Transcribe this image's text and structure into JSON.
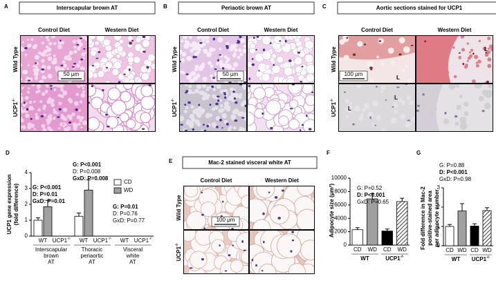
{
  "panels": {
    "A": {
      "letter": "A",
      "title": "Interscapular brown AT",
      "columns": [
        "Control Diet",
        "Western Diet"
      ],
      "rows": [
        "Wild Type",
        {
          "base": "UCP1",
          "sup": "-/-"
        }
      ],
      "scale_bar": "50 μm"
    },
    "B": {
      "letter": "B",
      "title": "Periaotic brown AT",
      "columns": [
        "Control Diet",
        "Western Diet"
      ],
      "rows": [
        "Wild Type",
        {
          "base": "UCP1",
          "sup": "-/-"
        }
      ],
      "scale_bar": "50 μm"
    },
    "C": {
      "letter": "C",
      "title": "Aortic sections stained for UCP1",
      "columns": [
        "Control Diet",
        "Western Diet"
      ],
      "rows": [
        "Wild Type",
        {
          "base": "UCP1",
          "sup": "-/-"
        }
      ],
      "scale_bar": "100 μm",
      "lumen_labels": [
        "L",
        "L",
        "L",
        "L"
      ]
    },
    "E": {
      "letter": "E",
      "title": "Mac-2 stained visceral white AT",
      "columns": [
        "Control Diet",
        "Western Diet"
      ],
      "rows": [
        "Wild Type",
        {
          "base": "UCP1",
          "sup": "-/-"
        }
      ],
      "scale_bar": "100 μm"
    }
  },
  "chart_data": [
    {
      "letter": "D",
      "type": "bar",
      "ylabel": [
        "UCP1 gene expression",
        "(fold difference)"
      ],
      "categories": [
        [
          "Interscapular",
          "brown",
          "AT"
        ],
        [
          "Thoracic",
          "periaortic",
          "AT"
        ],
        [
          "Visceral",
          "white",
          "AT"
        ]
      ],
      "group_labels": [
        "WT",
        {
          "base": "UCP1",
          "sup": "-/-"
        }
      ],
      "series": [
        {
          "name": "CD",
          "color": "#ffffff",
          "values": [
            1.0,
            1.25,
            null
          ],
          "errors": [
            0.15,
            0.2,
            null
          ]
        },
        {
          "name": "WD",
          "color": "#a0a0a0",
          "values": [
            1.85,
            2.9,
            null
          ],
          "errors": [
            0.4,
            0.65,
            null
          ]
        }
      ],
      "ylim": [
        0,
        4
      ],
      "yticks": [
        0,
        1,
        2,
        3,
        4
      ],
      "stats": [
        [
          {
            "text": "G: P<0.001",
            "bold": true
          },
          {
            "text": "D: P=0.01",
            "bold": true
          },
          {
            "text": "GxD: P=0.01",
            "bold": true
          }
        ],
        [
          {
            "text": "G: P<0.001",
            "bold": true
          },
          {
            "text": "D: P=0.008",
            "bold": false
          },
          {
            "text": "GxD: P=0.008",
            "bold": true
          }
        ],
        [
          {
            "text": "G: P=0.01",
            "bold": true
          },
          {
            "text": "D: P=0.76",
            "bold": false
          },
          {
            "text": "GxD: P=0.77",
            "bold": false
          }
        ]
      ]
    },
    {
      "letter": "F",
      "type": "bar",
      "ylabel": [
        "Adipocyte size (μm²)"
      ],
      "categories": [
        "CD",
        "WD",
        "CD",
        "WD"
      ],
      "group_labels": [
        "WT",
        {
          "base": "UCP1",
          "sup": "-/-"
        }
      ],
      "values": [
        2300,
        6900,
        2100,
        6500
      ],
      "errors": [
        300,
        800,
        300,
        500
      ],
      "colors": [
        "#ffffff",
        "#a0a0a0",
        "#000000",
        "#ffffff"
      ],
      "hatched": [
        false,
        false,
        false,
        true
      ],
      "ylim": [
        0,
        10000
      ],
      "yticks": [
        0,
        2000,
        4000,
        6000,
        8000,
        10000
      ],
      "stats": [
        {
          "text": "G: P=0.52",
          "bold": false
        },
        {
          "text": "D: P<0.001",
          "bold": true
        },
        {
          "text": "GxD: P=0.65",
          "bold": false
        }
      ]
    },
    {
      "letter": "G",
      "type": "bar",
      "ylabel": [
        "Fold difference in Mac-2",
        "positive-stained area",
        "per adipocyte number"
      ],
      "categories": [
        "CD",
        "WD",
        "CD",
        "WD"
      ],
      "group_labels": [
        "WT",
        {
          "base": "UCP1",
          "sup": "-/-"
        }
      ],
      "values": [
        1.0,
        1.8,
        1.02,
        1.82
      ],
      "errors": [
        0.1,
        0.38,
        0.12,
        0.15
      ],
      "colors": [
        "#ffffff",
        "#a0a0a0",
        "#000000",
        "#ffffff"
      ],
      "hatched": [
        false,
        false,
        false,
        true
      ],
      "ylim": [
        0,
        3
      ],
      "yticks": [
        0,
        1,
        2,
        3
      ],
      "stats": [
        {
          "text": "G: P=0.88",
          "bold": false
        },
        {
          "text": "D: P<0.001",
          "bold": true
        },
        {
          "text": "GxD: P=0.98",
          "bold": false
        }
      ]
    }
  ]
}
